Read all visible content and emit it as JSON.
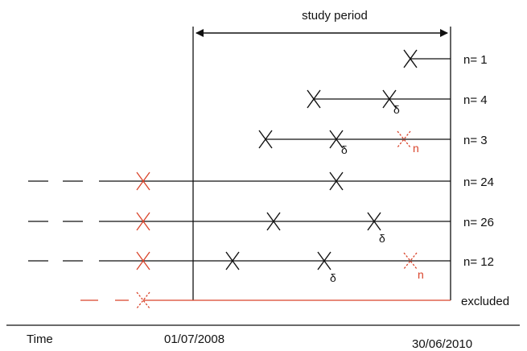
{
  "study_period_label": "study period",
  "time_label": "Time",
  "start_date": "01/07/2008",
  "end_date": "30/06/2010",
  "delta_symbol": "δ",
  "n_symbol": "n",
  "colors": {
    "main": "#111111",
    "excluded": "#d9442b"
  },
  "rows": [
    {
      "label": "n= 1"
    },
    {
      "label": "n= 4"
    },
    {
      "label": "n= 3"
    },
    {
      "label": "n= 24"
    },
    {
      "label": "n= 26"
    },
    {
      "label": "n= 12"
    },
    {
      "label": "excluded"
    }
  ]
}
